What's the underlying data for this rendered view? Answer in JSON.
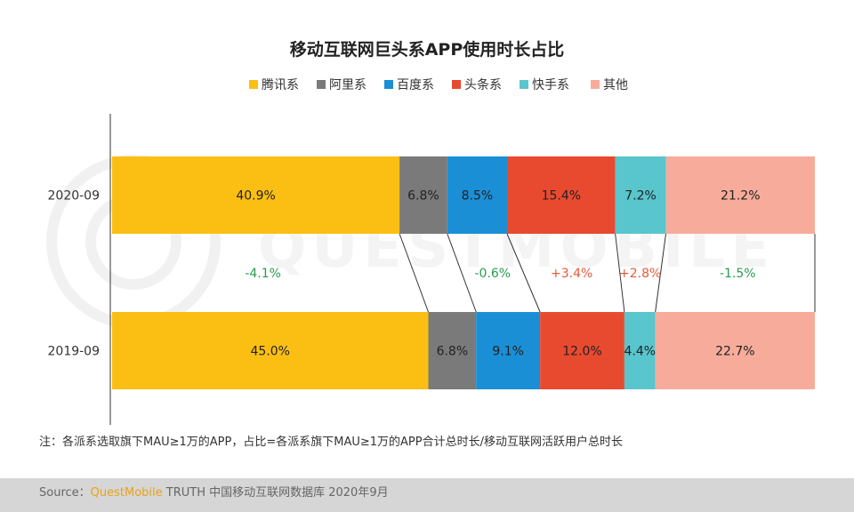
{
  "colors": {
    "tencent": "#fbbf14",
    "alibaba": "#7a7a7a",
    "baidu": "#1a8fd6",
    "toutiao": "#e84a30",
    "kuaishou": "#58c6cc",
    "other": "#f7ac9b",
    "positive": "#e8593a",
    "negative": "#2a9b52"
  },
  "chart_data": {
    "type": "bar",
    "orientation": "horizontal",
    "stacked": true,
    "title": "移动互联网巨头系APP使用时长占比",
    "legend_position": "top",
    "categories": [
      "2020-09",
      "2019-09"
    ],
    "series": [
      {
        "name": "腾讯系",
        "color_key": "tencent",
        "values": [
          40.9,
          45.0
        ],
        "labels": [
          "40.9%",
          "45.0%"
        ]
      },
      {
        "name": "阿里系",
        "color_key": "alibaba",
        "values": [
          6.8,
          6.8
        ],
        "labels": [
          "6.8%",
          "6.8%"
        ]
      },
      {
        "name": "百度系",
        "color_key": "baidu",
        "values": [
          8.5,
          9.1
        ],
        "labels": [
          "8.5%",
          "9.1%"
        ]
      },
      {
        "name": "头条系",
        "color_key": "toutiao",
        "values": [
          15.4,
          12.0
        ],
        "labels": [
          "15.4%",
          "12.0%"
        ]
      },
      {
        "name": "快手系",
        "color_key": "kuaishou",
        "values": [
          7.2,
          4.4
        ],
        "labels": [
          "7.2%",
          "4.4%"
        ]
      },
      {
        "name": "其他",
        "color_key": "other",
        "values": [
          21.2,
          22.7
        ],
        "labels": [
          "21.2%",
          "22.7%"
        ]
      }
    ],
    "changes": [
      {
        "label": "-4.1%",
        "sign": "negative"
      },
      {
        "label": "",
        "sign": "none"
      },
      {
        "label": "-0.6%",
        "sign": "negative"
      },
      {
        "label": "+3.4%",
        "sign": "positive"
      },
      {
        "label": "+2.8%",
        "sign": "positive"
      },
      {
        "label": "-1.5%",
        "sign": "negative"
      }
    ],
    "xlim": [
      0,
      100
    ],
    "grid": false
  },
  "note": "注：各派系选取旗下MAU≥1万的APP，占比=各派系旗下MAU≥1万的APP合计总时长/移动互联网活跃用户总时长",
  "source": {
    "prefix": "Source：",
    "brand": "QuestMobile",
    "rest": " TRUTH 中国移动互联网数据库 2020年9月"
  },
  "watermark_text": "QUESTMOBILE"
}
